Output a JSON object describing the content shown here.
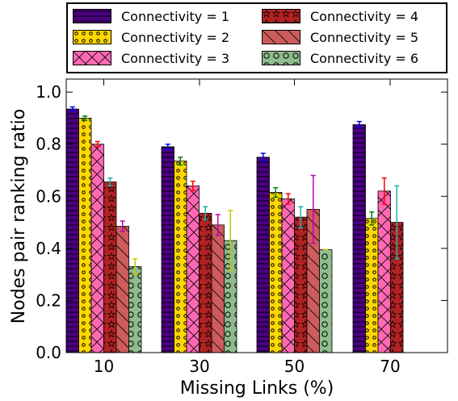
{
  "chart_data": {
    "type": "bar",
    "xlabel": "Missing Links (%)",
    "ylabel": "Nodes pair ranking ratio",
    "ylim": [
      0.0,
      1.05
    ],
    "yticks": [
      "0.0",
      "0.2",
      "0.4",
      "0.6",
      "0.8",
      "1.0"
    ],
    "categories": [
      "10",
      "30",
      "50",
      "70"
    ],
    "legend_position": "top, outside plot, 2 columns",
    "grid": false,
    "series": [
      {
        "name": "Connectivity = 1",
        "color": "#4b0082",
        "hatch": "horizontal-lines",
        "errcolor": "#0000ff",
        "values": [
          0.935,
          0.79,
          0.75,
          0.875
        ],
        "errors": [
          0.008,
          0.01,
          0.015,
          0.012
        ]
      },
      {
        "name": "Connectivity = 2",
        "color": "#ffd700",
        "hatch": "small-circles",
        "errcolor": "#008000",
        "values": [
          0.9,
          0.735,
          0.615,
          0.515
        ],
        "errors": [
          0.008,
          0.015,
          0.018,
          0.025
        ]
      },
      {
        "name": "Connectivity = 3",
        "color": "#ff69b4",
        "hatch": "diagonal-cross",
        "errcolor": "#ff0000",
        "values": [
          0.8,
          0.64,
          0.59,
          0.62
        ],
        "errors": [
          0.01,
          0.018,
          0.02,
          0.05
        ]
      },
      {
        "name": "Connectivity = 4",
        "color": "#b22222",
        "hatch": "stars",
        "errcolor": "#20b2aa",
        "values": [
          0.655,
          0.535,
          0.52,
          0.5
        ],
        "errors": [
          0.015,
          0.025,
          0.04,
          0.14
        ]
      },
      {
        "name": "Connectivity = 5",
        "color": "#cd5c5c",
        "hatch": "back-diagonal",
        "errcolor": "#c000c0",
        "values": [
          0.485,
          0.49,
          0.55,
          null
        ],
        "errors": [
          0.02,
          0.04,
          0.13,
          null
        ]
      },
      {
        "name": "Connectivity = 6",
        "color": "#8fbc8f",
        "hatch": "large-circles",
        "errcolor": "#c8c800",
        "values": [
          0.33,
          0.43,
          0.395,
          null
        ],
        "errors": [
          0.03,
          0.115,
          0.0,
          null
        ]
      }
    ]
  }
}
